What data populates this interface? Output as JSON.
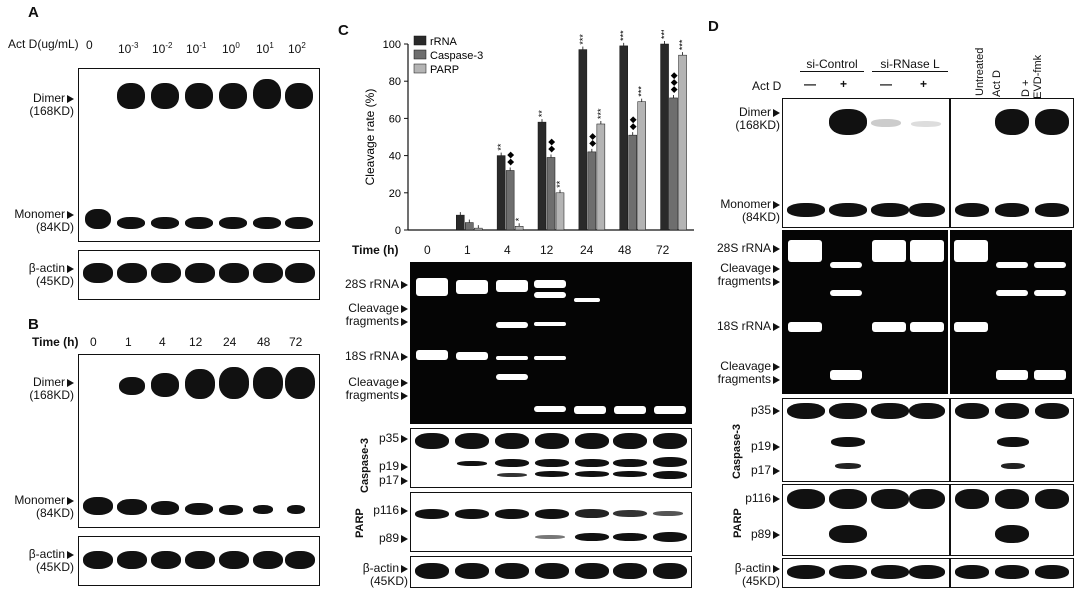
{
  "panelA": {
    "label": "A",
    "actd_label": "Act D(ug/mL)",
    "doses": [
      "0",
      "10",
      "10",
      "10",
      "10",
      "10",
      "10"
    ],
    "dose_exps": [
      "",
      "-3",
      "-2",
      "-1",
      "0",
      "1",
      "2"
    ],
    "dimer": "Dimer",
    "dimer_kd": "(168KD)",
    "monomer": "Monomer",
    "monomer_kd": "(84KD)",
    "actin": "β-actin",
    "actin_kd": "(45KD)"
  },
  "panelB": {
    "label": "B",
    "time_label": "Time (h)",
    "times": [
      "0",
      "1",
      "4",
      "12",
      "24",
      "48",
      "72"
    ],
    "dimer": "Dimer",
    "dimer_kd": "(168KD)",
    "monomer": "Monomer",
    "monomer_kd": "(84KD)",
    "actin": "β-actin",
    "actin_kd": "(45KD)"
  },
  "panelC": {
    "label": "C",
    "time_label": "Time (h)",
    "times": [
      "0",
      "1",
      "4",
      "12",
      "24",
      "48",
      "72"
    ],
    "rrna_28s": "28S rRNA",
    "cleavage": "Cleavage",
    "fragments": "fragments",
    "rrna_18s": "18S rRNA",
    "casp_label": "Caspase-3",
    "p35": "p35",
    "p19": "p19",
    "p17": "p17",
    "parp_label": "PARP",
    "p116": "p116",
    "p89": "p89",
    "actin": "β-actin",
    "actin_kd": "(45KD)"
  },
  "chart_data": {
    "type": "bar",
    "ylabel": "Cleavage rate (%)",
    "ylim": [
      0,
      100
    ],
    "yticks": [
      "0",
      "20",
      "40",
      "60",
      "80",
      "100"
    ],
    "categories": [
      "0",
      "1",
      "4",
      "12",
      "24",
      "48",
      "72"
    ],
    "series": [
      {
        "name": "rRNA",
        "color": "#2a2a2a",
        "values": [
          0,
          8,
          40,
          58,
          97,
          99,
          100
        ],
        "sig": [
          "",
          "",
          "**",
          "**",
          "***",
          "***",
          "***"
        ]
      },
      {
        "name": "Caspase-3",
        "color": "#6e6e6e",
        "values": [
          0,
          4,
          32,
          39,
          42,
          51,
          71
        ],
        "sig": [
          "",
          "",
          "◆◆",
          "◆◆",
          "◆◆",
          "◆◆",
          "◆◆◆"
        ]
      },
      {
        "name": "PARP",
        "color": "#b4b4b4",
        "values": [
          0,
          1,
          2,
          20,
          57,
          69,
          94
        ],
        "sig": [
          "",
          "",
          "*",
          "**",
          "***",
          "***",
          "***"
        ]
      }
    ],
    "legend": "top-left"
  },
  "panelD": {
    "label": "D",
    "sicontrol": "si-Control",
    "sirnase": "si-RNase L",
    "untreated": "Untreated",
    "actd": "Act D",
    "actd_zdevd_1": "Act D +",
    "actd_zdevd_2": "z-DEVD-fmk",
    "actd_row": "Act D",
    "signs": [
      "—",
      "+",
      "—",
      "+"
    ],
    "dimer": "Dimer",
    "dimer_kd": "(168KD)",
    "monomer": "Monomer",
    "monomer_kd": "(84KD)",
    "rrna_28s": "28S rRNA",
    "cleavage": "Cleavage",
    "fragments": "fragments",
    "rrna_18s": "18S rRNA",
    "casp_label": "Caspase-3",
    "p35": "p35",
    "p19": "p19",
    "p17": "p17",
    "parp_label": "PARP",
    "p116": "p116",
    "p89": "p89",
    "actin": "β-actin",
    "actin_kd": "(45KD)"
  }
}
